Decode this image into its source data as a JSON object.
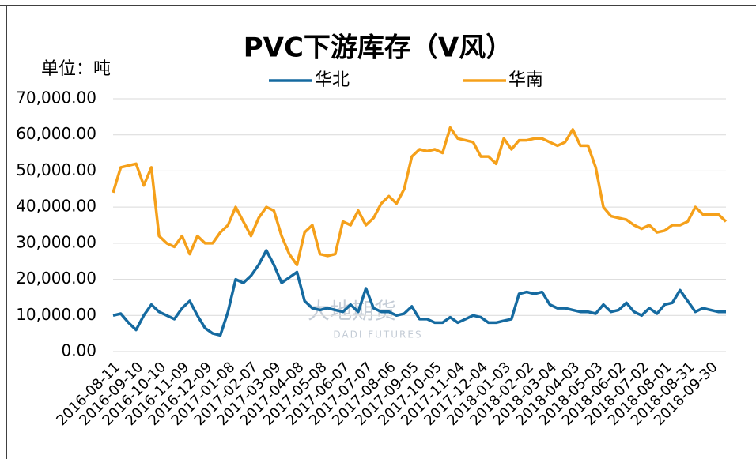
{
  "chart_data": {
    "type": "line",
    "title": "PVC下游库存（V风）",
    "unit_label": "单位：吨",
    "watermark": [
      "大地期货",
      "DADI FUTURES"
    ],
    "categories": [
      "2016-08-11",
      null,
      null,
      "2016-09-10",
      null,
      null,
      "2016-10-10",
      null,
      null,
      "2016-11-09",
      null,
      null,
      "2016-12-09",
      null,
      null,
      "2017-01-08",
      null,
      null,
      "2017-02-07",
      null,
      null,
      "2017-03-09",
      null,
      null,
      "2017-04-08",
      null,
      null,
      "2017-05-08",
      null,
      null,
      "2017-06-07",
      null,
      null,
      "2017-07-07",
      null,
      null,
      "2017-08-06",
      null,
      null,
      "2017-09-05",
      null,
      null,
      "2017-10-05",
      null,
      null,
      "2017-11-04",
      null,
      null,
      "2017-12-04",
      null,
      null,
      "2018-01-03",
      null,
      null,
      "2018-02-02",
      null,
      null,
      "2018-03-04",
      null,
      null,
      "2018-04-03",
      null,
      null,
      "2018-05-03",
      null,
      null,
      "2018-06-02",
      null,
      null,
      "2018-07-02",
      null,
      null,
      "2018-08-01",
      null,
      null,
      "2018-08-31",
      null,
      null,
      "2018-09-30",
      null,
      null
    ],
    "series": [
      {
        "name": "华北",
        "color": "#156aa0",
        "values": [
          10000,
          10500,
          8000,
          6000,
          10000,
          13000,
          11000,
          10000,
          9000,
          12000,
          14000,
          10000,
          6500,
          5000,
          4500,
          11000,
          20000,
          19000,
          21000,
          24000,
          28000,
          24000,
          19000,
          20500,
          22000,
          14000,
          12000,
          11500,
          12000,
          11500,
          11000,
          13000,
          11000,
          17500,
          12000,
          11000,
          11000,
          10000,
          10500,
          12500,
          9000,
          9000,
          8000,
          8000,
          9500,
          8000,
          9000,
          10000,
          9500,
          8000,
          8000,
          8500,
          9000,
          16000,
          16500,
          16000,
          16500,
          13000,
          12000,
          12000,
          11500,
          11000,
          11000,
          10500,
          13000,
          11000,
          11500,
          13500,
          11000,
          10000,
          12000,
          10500,
          13000,
          13500,
          17000,
          14000,
          11000,
          12000,
          11500,
          11000,
          11000
        ]
      },
      {
        "name": "华南",
        "color": "#f5a01a",
        "values": [
          44000,
          51000,
          51500,
          52000,
          46000,
          51000,
          32000,
          30000,
          29000,
          32000,
          27000,
          32000,
          30000,
          30000,
          33000,
          35000,
          40000,
          36000,
          32000,
          37000,
          40000,
          39000,
          32000,
          27000,
          24000,
          33000,
          35000,
          27000,
          26500,
          27000,
          36000,
          35000,
          39000,
          35000,
          37000,
          41000,
          43000,
          41000,
          45000,
          54000,
          56000,
          55500,
          56000,
          55000,
          62000,
          59000,
          58500,
          58000,
          54000,
          54000,
          52000,
          59000,
          56000,
          58500,
          58500,
          59000,
          59000,
          58000,
          57000,
          58000,
          61500,
          57000,
          57000,
          51000,
          40000,
          37500,
          37000,
          36500,
          35000,
          34000,
          35000,
          33000,
          33500,
          35000,
          35000,
          36000,
          40000,
          38000,
          38000,
          38000,
          36000
        ]
      }
    ],
    "ylim": [
      0,
      70000
    ],
    "yticks": [
      {
        "value": 0,
        "label": "0.00"
      },
      {
        "value": 10000,
        "label": "10,000.00"
      },
      {
        "value": 20000,
        "label": "20,000.00"
      },
      {
        "value": 30000,
        "label": "30,000.00"
      },
      {
        "value": 40000,
        "label": "40,000.00"
      },
      {
        "value": 50000,
        "label": "50,000.00"
      },
      {
        "value": 60000,
        "label": "60,000.00"
      },
      {
        "value": 70000,
        "label": "70,000.00"
      }
    ],
    "grid": true,
    "legend": "top"
  }
}
